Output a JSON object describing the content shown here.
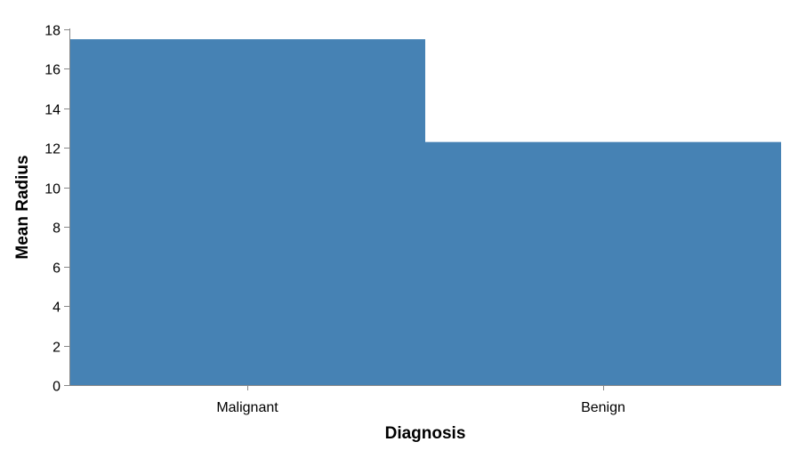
{
  "chart_data": {
    "type": "bar",
    "categories": [
      "Malignant",
      "Benign"
    ],
    "values": [
      17.5,
      12.3
    ],
    "xlabel": "Diagnosis",
    "ylabel": "Mean Radius",
    "ylim": [
      0,
      18
    ],
    "yticks": [
      0,
      2,
      4,
      6,
      8,
      10,
      12,
      14,
      16,
      18
    ],
    "grid": false,
    "bar_color": "#4682b4"
  }
}
